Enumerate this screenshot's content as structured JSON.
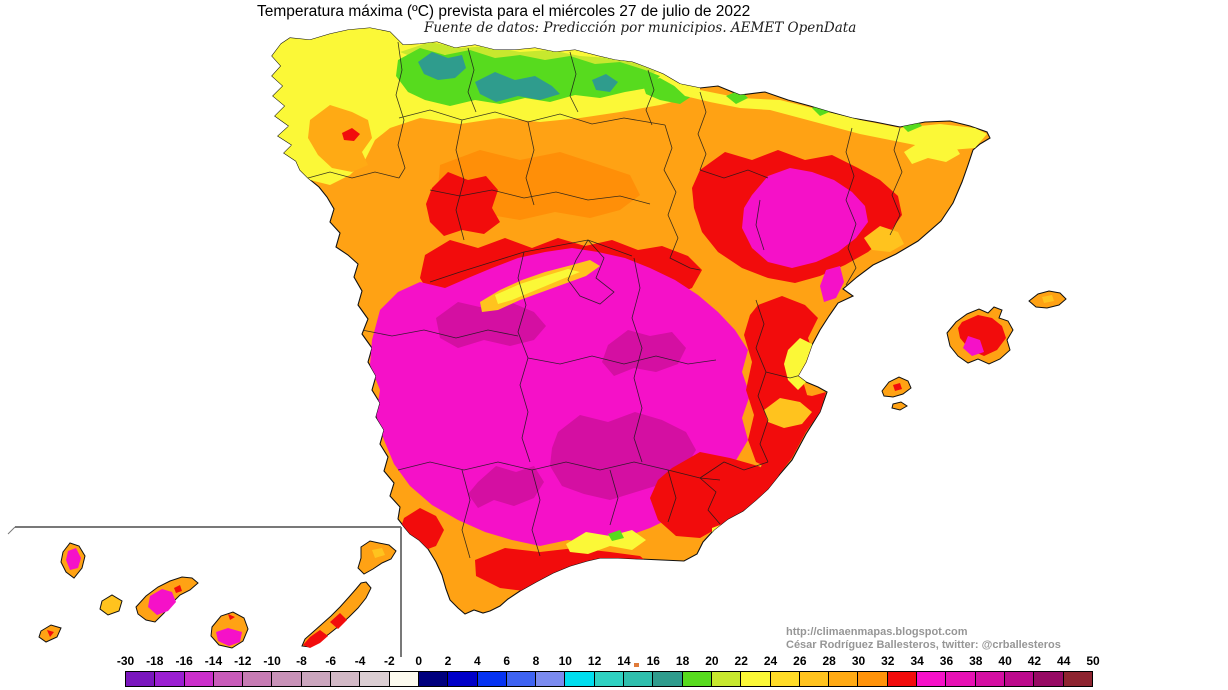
{
  "title": "Temperatura máxima (ºC) prevista para el miércoles 27 de julio de 2022",
  "subtitle": "Fuente de datos: Predicción por municipios. AEMET OpenData",
  "credits": {
    "url": "http://climaenmapas.blogspot.com",
    "author": "César Rodríguez Ballesteros, twitter: @crballesteros"
  },
  "legend": {
    "unit": "ºC",
    "labels": [
      "-30",
      "-18",
      "-16",
      "-14",
      "-12",
      "-10",
      "-8",
      "-6",
      "-4",
      "-2",
      "0",
      "2",
      "4",
      "6",
      "8",
      "10",
      "12",
      "14",
      "16",
      "18",
      "20",
      "22",
      "24",
      "26",
      "28",
      "30",
      "32",
      "34",
      "36",
      "38",
      "40",
      "42",
      "44",
      "50"
    ],
    "colors": [
      "#7A16BE",
      "#9B1FD2",
      "#CB2FCB",
      "#C95CBA",
      "#C77CB4",
      "#C892B8",
      "#CBA6BE",
      "#D2B9C6",
      "#DBCED3",
      "#FCFAEF",
      "#00007E",
      "#0000C8",
      "#0633F2",
      "#3E63F2",
      "#7B8BF0",
      "#00DEEF",
      "#2FD2C2",
      "#2FBFAD",
      "#2F9C8D",
      "#57DB1E",
      "#C7E82E",
      "#FBF837",
      "#FFDC28",
      "#FFC31E",
      "#FFAA14",
      "#FF930A",
      "#F20C0C",
      "#F611C8",
      "#E711B4",
      "#D40FA2",
      "#BC0A8C",
      "#970A64",
      "#8E2430"
    ]
  },
  "map_colors": {
    "base_orange": "#FFA214",
    "deep_orange": "#FF8F08",
    "red": "#F20C0C",
    "magenta": "#F511C8",
    "dark_magenta": "#D40FA2",
    "yellow": "#FBF837",
    "gold": "#FFC31E",
    "yellow_green": "#C7E82E",
    "green": "#57DB1E",
    "teal": "#2F9C8D",
    "inset_border_gray": "#787878"
  }
}
